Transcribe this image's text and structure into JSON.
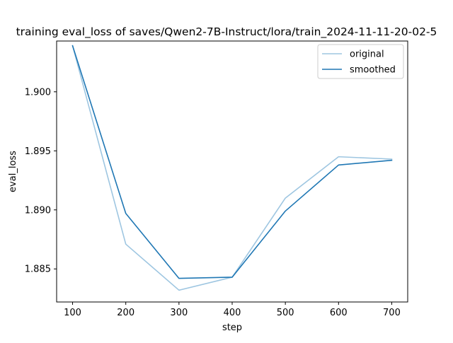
{
  "chart_data": {
    "type": "line",
    "title": "training eval_loss of saves/Qwen2-7B-Instruct/lora/train_2024-11-11-20-02-5",
    "xlabel": "step",
    "ylabel": "eval_loss",
    "x": [
      100,
      200,
      300,
      400,
      500,
      600,
      700
    ],
    "xlim": [
      70,
      730
    ],
    "ylim": [
      1.8822,
      1.9043
    ],
    "xticks": [
      100,
      200,
      300,
      400,
      500,
      600,
      700
    ],
    "yticks": [
      1.885,
      1.89,
      1.895,
      1.9
    ],
    "xtick_labels": [
      "100",
      "200",
      "300",
      "400",
      "500",
      "600",
      "700"
    ],
    "ytick_labels": [
      "1.885",
      "1.890",
      "1.895",
      "1.900"
    ],
    "grid": false,
    "legend_position": "top-right",
    "series": [
      {
        "name": "original",
        "color": "#9ec6e1",
        "values": [
          1.9039,
          1.8871,
          1.8832,
          1.8843,
          1.891,
          1.8945,
          1.8943
        ]
      },
      {
        "name": "smoothed",
        "color": "#1f77b4",
        "values": [
          1.9039,
          1.8897,
          1.8842,
          1.8843,
          1.8899,
          1.8938,
          1.8942
        ]
      }
    ]
  }
}
